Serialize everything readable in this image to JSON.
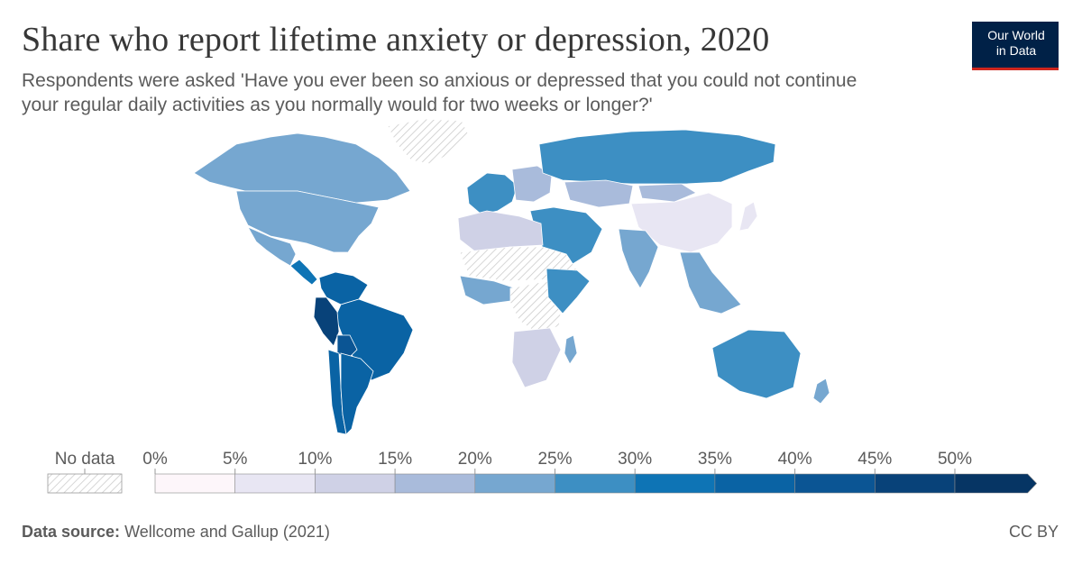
{
  "header": {
    "title": "Share who report lifetime anxiety or depression, 2020",
    "subtitle": "Respondents were asked 'Have you ever been so anxious or depressed that you could not continue your regular daily activities as you normally would for two weeks or longer?'"
  },
  "logo": {
    "line1": "Our World",
    "line2": "in Data"
  },
  "legend": {
    "no_data_label": "No data",
    "ticks": [
      "0%",
      "5%",
      "10%",
      "15%",
      "20%",
      "25%",
      "30%",
      "35%",
      "40%",
      "45%",
      "50%"
    ],
    "colors": [
      "#fdf6fa",
      "#e8e6f3",
      "#cfd1e6",
      "#a9bbdb",
      "#76a7d0",
      "#3d8fc3",
      "#0e74b5",
      "#0a63a4",
      "#0b5594",
      "#084279",
      "#063564"
    ]
  },
  "footer": {
    "source_label": "Data source:",
    "source_text": "Wellcome and Gallup (2021)",
    "license": "CC BY"
  },
  "map_data": {
    "regions": [
      {
        "name": "Canada",
        "value": 22
      },
      {
        "name": "United States",
        "value": 22
      },
      {
        "name": "Greenland",
        "value": null
      },
      {
        "name": "Mexico",
        "value": 21
      },
      {
        "name": "Central America",
        "value": 31
      },
      {
        "name": "Colombia & Venezuela",
        "value": 38
      },
      {
        "name": "Brazil",
        "value": 38
      },
      {
        "name": "Peru",
        "value": 46
      },
      {
        "name": "Bolivia",
        "value": 40
      },
      {
        "name": "Chile",
        "value": 35
      },
      {
        "name": "Argentina",
        "value": 36
      },
      {
        "name": "Western Europe",
        "value": 26
      },
      {
        "name": "Eastern Europe",
        "value": 18
      },
      {
        "name": "Russia",
        "value": 28
      },
      {
        "name": "Kazakhstan",
        "value": 17
      },
      {
        "name": "Mongolia",
        "value": 18
      },
      {
        "name": "China",
        "value": 5
      },
      {
        "name": "Middle East",
        "value": 28
      },
      {
        "name": "India",
        "value": 23
      },
      {
        "name": "Southeast Asia",
        "value": 22
      },
      {
        "name": "Japan",
        "value": 9
      },
      {
        "name": "North Africa",
        "value": 10
      },
      {
        "name": "Sahara",
        "value": null
      },
      {
        "name": "West Africa",
        "value": 20
      },
      {
        "name": "Central Africa",
        "value": null
      },
      {
        "name": "East Africa",
        "value": 25
      },
      {
        "name": "Southern Africa",
        "value": 12
      },
      {
        "name": "Madagascar",
        "value": 20
      },
      {
        "name": "Australia",
        "value": 25
      },
      {
        "name": "New Zealand",
        "value": 21
      }
    ]
  }
}
